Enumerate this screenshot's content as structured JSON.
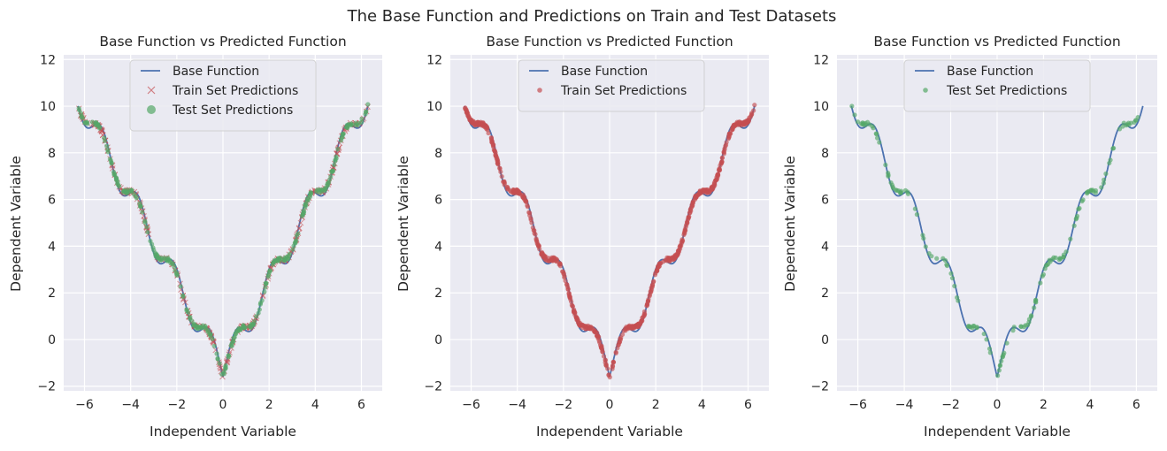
{
  "figure_title": "The Base Function and Predictions on Train and Test Datasets",
  "colors": {
    "axes_background": "#eaeaf2",
    "grid": "#ffffff",
    "base_line": "#4c72b0",
    "train": "#c44e52",
    "test": "#55a868"
  },
  "chart_data": [
    {
      "type": "scatter",
      "title": "Base Function vs Predicted Function",
      "xlabel": "Independent Variable",
      "ylabel": "Dependent Variable",
      "xlim": [
        -6.9,
        6.9
      ],
      "ylim": [
        -2.2,
        12.2
      ],
      "xticks": [
        -6,
        -4,
        -2,
        0,
        2,
        4,
        6
      ],
      "xtick_labels": [
        "−6",
        "−4",
        "−2",
        "0",
        "2",
        "4",
        "6"
      ],
      "yticks": [
        -2,
        0,
        2,
        4,
        6,
        8,
        10,
        12
      ],
      "ytick_labels": [
        "−2",
        "0",
        "2",
        "4",
        "6",
        "8",
        "10",
        "12"
      ],
      "grid": true,
      "legend_position": "top-center",
      "series": [
        {
          "name": "Base Function",
          "kind": "line",
          "color": "#4c72b0",
          "x_range": [
            -6.28,
            6.28
          ],
          "points": 600,
          "function": "sqrt(|x|)*3 + sin(3x)-like oscillation, min -1.6 at x=0"
        },
        {
          "name": "Train Set Predictions",
          "kind": "x-marker",
          "color": "#c44e52",
          "x_range": [
            -6.28,
            6.28
          ],
          "count": 300
        },
        {
          "name": "Test Set Predictions",
          "kind": "dot",
          "color": "#55a868",
          "x_range": [
            -6.28,
            6.28
          ],
          "count": 300
        }
      ]
    },
    {
      "type": "scatter",
      "title": "Base Function vs Predicted Function",
      "xlabel": "Independent Variable",
      "ylabel": "Dependent Variable",
      "xlim": [
        -6.9,
        6.9
      ],
      "ylim": [
        -2.2,
        12.2
      ],
      "xticks": [
        -6,
        -4,
        -2,
        0,
        2,
        4,
        6
      ],
      "xtick_labels": [
        "−6",
        "−4",
        "−2",
        "0",
        "2",
        "4",
        "6"
      ],
      "yticks": [
        -2,
        0,
        2,
        4,
        6,
        8,
        10,
        12
      ],
      "ytick_labels": [
        "−2",
        "0",
        "2",
        "4",
        "6",
        "8",
        "10",
        "12"
      ],
      "grid": true,
      "legend_position": "top-center",
      "series": [
        {
          "name": "Base Function",
          "kind": "line",
          "color": "#4c72b0",
          "x_range": [
            -6.28,
            6.28
          ],
          "points": 600
        },
        {
          "name": "Train Set Predictions",
          "kind": "dot",
          "color": "#c44e52",
          "x_range": [
            -6.28,
            6.28
          ],
          "count": 700
        }
      ]
    },
    {
      "type": "scatter",
      "title": "Base Function vs Predicted Function",
      "xlabel": "Independent Variable",
      "ylabel": "Dependent Variable",
      "xlim": [
        -6.9,
        6.9
      ],
      "ylim": [
        -2.2,
        12.2
      ],
      "xticks": [
        -6,
        -4,
        -2,
        0,
        2,
        4,
        6
      ],
      "xtick_labels": [
        "−6",
        "−4",
        "−2",
        "0",
        "2",
        "4",
        "6"
      ],
      "yticks": [
        -2,
        0,
        2,
        4,
        6,
        8,
        10,
        12
      ],
      "ytick_labels": [
        "−2",
        "0",
        "2",
        "4",
        "6",
        "8",
        "10",
        "12"
      ],
      "grid": true,
      "legend_position": "top-center",
      "series": [
        {
          "name": "Base Function",
          "kind": "line",
          "color": "#4c72b0",
          "x_range": [
            -6.28,
            6.28
          ],
          "points": 600
        },
        {
          "name": "Test Set Predictions",
          "kind": "dot",
          "color": "#55a868",
          "x_range": [
            -6.28,
            6.28
          ],
          "count": 150
        }
      ]
    }
  ]
}
